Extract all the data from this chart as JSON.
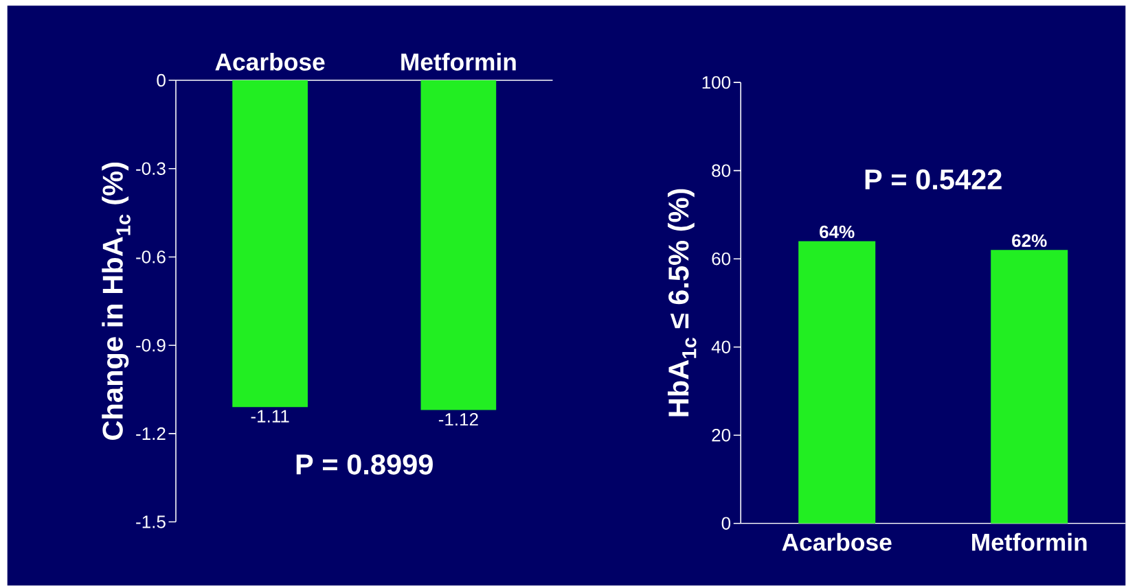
{
  "chart_data": [
    {
      "type": "bar",
      "categories": [
        "Acarbose",
        "Metformin"
      ],
      "values": [
        -1.11,
        -1.12
      ],
      "color": "#22ee22",
      "ylabel": "Change in HbA$_{1c}$ (%)",
      "ylim": [
        -1.5,
        0
      ],
      "yticks": [
        0,
        -0.3,
        -0.6,
        -0.9,
        -1.2,
        -1.5
      ],
      "data_labels": true,
      "annotations": [
        "P = 0.8999"
      ]
    },
    {
      "type": "bar",
      "categories": [
        "Acarbose",
        "Metformin"
      ],
      "values": [
        64,
        62
      ],
      "color": "#22ee22",
      "ylabel": "HbA$_{1c}$ ≤ 6.5% (%)",
      "ylim": [
        0,
        100
      ],
      "yticks": [
        0,
        20,
        40,
        60,
        80,
        100
      ],
      "value_labels": [
        "64%",
        "62%"
      ],
      "annotations": [
        "P = 0.5422"
      ]
    }
  ]
}
